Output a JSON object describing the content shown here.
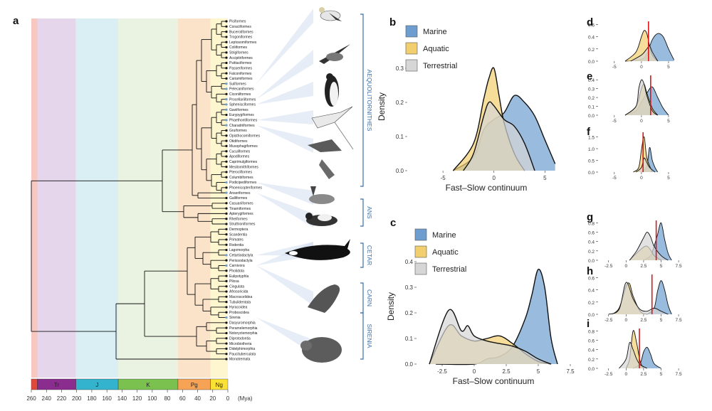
{
  "panel_letters": {
    "a": "a",
    "b": "b",
    "c": "c",
    "d": "d",
    "e": "e",
    "f": "f",
    "g": "g",
    "h": "h",
    "i": "i"
  },
  "colors": {
    "marine": "#6d9ecf",
    "aquatic": "#f2cf6e",
    "terrestrial": "#d6d6d6",
    "aves_bg": "#eaf0e0",
    "line": "#111111",
    "clade": "#3b6fa8",
    "vline": "#d7191c"
  },
  "tree": {
    "leaves": [
      "Piciformes",
      "Coraciiformes",
      "Bucerotiformes",
      "Trogoniformes",
      "Leptosomiformes",
      "Coliiformes",
      "Strigiformes",
      "Accipitriformes",
      "Psittaciformes",
      "Passeriformes",
      "Falconiformes",
      "Cariamiformes",
      "Suliformes",
      "Pelecaniformes",
      "Ciconiiformes",
      "Procellariiformes",
      "Sphenisciformes",
      "Gaviiformes",
      "Eurypygiformes",
      "Phaethontiformes",
      "Charadriiformes",
      "Gruiformes",
      "Opisthocomiformes",
      "Otidiformes",
      "Musophagiformes",
      "Cuculiformes",
      "Apodiformes",
      "Caprimulgiformes",
      "Mesitornithiformes",
      "Pterocliformes",
      "Columbiformes",
      "Podicipediformes",
      "Phoenicopteriformes",
      "Anseriformes",
      "Galliformes",
      "Casuariiformes",
      "Tinamiformes",
      "Apterygiformes",
      "Rheiformes",
      "Struthioniformes",
      "Dermoptera",
      "Scandentia",
      "Primates",
      "Rodentia",
      "Lagomorpha",
      "Cetartiodactyla",
      "Perissodactyla",
      "Carnivora",
      "Pholidota",
      "Eulipotyphla",
      "Pilosa",
      "Cingulata",
      "Afrosoricida",
      "Macroscelidea",
      "Tubulidentata",
      "Hyracoidea",
      "Proboscidea",
      "Sirenia",
      "Dasyuromorphia",
      "Peramelemorphia",
      "Notoryctemorphia",
      "Diprotodontia",
      "Microbiotheria",
      "Didelphimorphia",
      "Paucituberculata",
      "Monotremata"
    ],
    "aquatic_leaves": [
      "Suliformes",
      "Pelecaniformes",
      "Procellariiformes",
      "Sphenisciformes",
      "Gaviiformes",
      "Phaethontiformes",
      "Charadriiformes",
      "Podicipediformes",
      "Anseriformes",
      "Cetartiodactyla",
      "Carnivora",
      "Sirenia"
    ],
    "clades": [
      {
        "name": "AEQUOLITORNITHES"
      },
      {
        "name": "ANS"
      },
      {
        "name": "CETAR"
      },
      {
        "name": "CARN"
      },
      {
        "name": "SIRENIA"
      }
    ]
  },
  "timescale": {
    "periods": [
      {
        "name": "",
        "start": 260,
        "end": 252,
        "color": "#e2473a"
      },
      {
        "name": "Tr",
        "start": 252,
        "end": 201,
        "color": "#8b2c8f"
      },
      {
        "name": "J",
        "start": 201,
        "end": 145,
        "color": "#33b3cd"
      },
      {
        "name": "K",
        "start": 145,
        "end": 66,
        "color": "#7bc150"
      },
      {
        "name": "Pg",
        "start": 66,
        "end": 23,
        "color": "#f7a356"
      },
      {
        "name": "Ng",
        "start": 23,
        "end": 0,
        "color": "#fbe134"
      }
    ],
    "ticks": [
      260,
      240,
      220,
      200,
      180,
      160,
      140,
      120,
      100,
      80,
      60,
      40,
      20,
      0
    ],
    "unit": "(Mya)"
  },
  "chart_data": [
    {
      "id": "b",
      "type": "area",
      "title": "",
      "xlabel": "Fast–Slow continuum",
      "ylabel": "Density",
      "xlim": [
        -8.5,
        7
      ],
      "ylim": [
        0,
        0.375
      ],
      "xticks": [
        -5,
        0,
        5
      ],
      "yticks": [
        0.0,
        0.1,
        0.2,
        0.3
      ],
      "legend_position": "top-left",
      "series": [
        {
          "name": "Marine",
          "x": [
            -4,
            -2,
            -1,
            0,
            1,
            2,
            3,
            4,
            5,
            6
          ],
          "y": [
            0.0,
            0.04,
            0.12,
            0.15,
            0.17,
            0.22,
            0.2,
            0.16,
            0.09,
            0.02
          ]
        },
        {
          "name": "Aquatic",
          "x": [
            -4,
            -2,
            -1,
            -0.5,
            0,
            0.5,
            1,
            2,
            3
          ],
          "y": [
            0.0,
            0.08,
            0.21,
            0.27,
            0.3,
            0.22,
            0.14,
            0.05,
            0.0
          ]
        },
        {
          "name": "Terrestrial",
          "x": [
            -3,
            -2,
            -1,
            -0.5,
            0,
            1,
            2,
            3,
            4
          ],
          "y": [
            0.0,
            0.05,
            0.16,
            0.2,
            0.19,
            0.15,
            0.13,
            0.08,
            0.0
          ]
        }
      ]
    },
    {
      "id": "c",
      "type": "area",
      "title": "",
      "xlabel": "Fast–Slow continuum",
      "ylabel": "Density",
      "xlim": [
        -4.5,
        7.5
      ],
      "ylim": [
        0,
        0.45
      ],
      "xticks": [
        -2.5,
        0.0,
        2.5,
        5.0,
        7.5
      ],
      "yticks": [
        0.0,
        0.1,
        0.2,
        0.3,
        0.4
      ],
      "legend_position": "top-left",
      "series": [
        {
          "name": "Marine",
          "x": [
            -3,
            0,
            1,
            2,
            3,
            4,
            4.5,
            5,
            5.5,
            6,
            6.5
          ],
          "y": [
            0.0,
            0.0,
            0.02,
            0.03,
            0.07,
            0.18,
            0.27,
            0.37,
            0.3,
            0.1,
            0.0
          ]
        },
        {
          "name": "Aquatic",
          "x": [
            -3.5,
            -2,
            -1,
            0,
            1,
            2,
            3,
            4,
            5,
            6
          ],
          "y": [
            0.0,
            0.15,
            0.11,
            0.09,
            0.1,
            0.11,
            0.08,
            0.04,
            0.01,
            0.0
          ]
        },
        {
          "name": "Terrestrial",
          "x": [
            -3.5,
            -2,
            -1,
            -0.5,
            0,
            1,
            2,
            3,
            4,
            5,
            6
          ],
          "y": [
            0.0,
            0.21,
            0.13,
            0.15,
            0.11,
            0.09,
            0.08,
            0.07,
            0.05,
            0.02,
            0.0
          ]
        }
      ]
    },
    {
      "id": "d",
      "type": "area",
      "title": "",
      "xlabel": "",
      "ylabel": "",
      "xlim": [
        -8,
        7.5
      ],
      "ylim": [
        0,
        0.65
      ],
      "xticks": [
        -5,
        0,
        5
      ],
      "yticks": [
        0.0,
        0.2,
        0.4,
        0.6
      ],
      "vline": 1.3,
      "series": [
        {
          "name": "Marine",
          "x": [
            -3,
            0,
            1,
            2,
            3,
            4,
            5,
            6
          ],
          "y": [
            0.0,
            0.03,
            0.12,
            0.35,
            0.45,
            0.4,
            0.2,
            0.02
          ]
        },
        {
          "name": "Aquatic",
          "x": [
            -3,
            -1,
            0,
            0.5,
            1,
            1.5,
            2,
            3
          ],
          "y": [
            0.0,
            0.15,
            0.4,
            0.5,
            0.45,
            0.25,
            0.1,
            0.0
          ]
        },
        {
          "name": "Terrestrial",
          "x": [
            -2,
            0,
            1,
            1.5,
            2,
            3
          ],
          "y": [
            0.0,
            0.1,
            0.2,
            0.25,
            0.15,
            0.0
          ]
        }
      ]
    },
    {
      "id": "e",
      "type": "area",
      "title": "",
      "xlabel": "",
      "ylabel": "",
      "xlim": [
        -8,
        7.5
      ],
      "ylim": [
        0,
        0.45
      ],
      "xticks": [
        -5,
        0,
        5
      ],
      "yticks": [
        0.0,
        0.1,
        0.2,
        0.3,
        0.4
      ],
      "vline": 1.7,
      "series": [
        {
          "name": "Marine",
          "x": [
            -3,
            -1,
            0,
            1,
            2,
            3,
            4,
            5
          ],
          "y": [
            0.0,
            0.05,
            0.15,
            0.25,
            0.32,
            0.2,
            0.08,
            0.0
          ]
        },
        {
          "name": "Aquatic",
          "x": [
            -3,
            -1,
            0,
            0.5,
            1,
            2,
            3
          ],
          "y": [
            0.0,
            0.1,
            0.3,
            0.35,
            0.25,
            0.08,
            0.0
          ]
        },
        {
          "name": "Terrestrial",
          "x": [
            -3,
            -1,
            -0.5,
            0,
            0.5,
            1,
            2,
            3
          ],
          "y": [
            0.0,
            0.1,
            0.3,
            0.4,
            0.35,
            0.22,
            0.05,
            0.0
          ]
        }
      ]
    },
    {
      "id": "f",
      "type": "area",
      "title": "",
      "xlabel": "",
      "ylabel": "",
      "xlim": [
        -8,
        7.5
      ],
      "ylim": [
        0,
        1.7
      ],
      "xticks": [
        -5,
        0,
        5
      ],
      "yticks": [
        0.0,
        0.5,
        1.0,
        1.5
      ],
      "vline": 0.3,
      "series": [
        {
          "name": "Marine",
          "x": [
            0,
            1,
            1.5,
            2,
            2.5,
            3
          ],
          "y": [
            0.0,
            0.25,
            1.05,
            0.5,
            0.2,
            0.0
          ]
        },
        {
          "name": "Aquatic",
          "x": [
            -1.5,
            -0.5,
            0,
            0.5,
            1,
            2
          ],
          "y": [
            0.0,
            0.2,
            0.95,
            1.5,
            0.6,
            0.0
          ]
        },
        {
          "name": "Terrestrial",
          "x": [
            -1,
            0,
            0.5,
            1,
            1.5,
            2.5
          ],
          "y": [
            0.0,
            0.2,
            0.6,
            0.4,
            0.2,
            0.0
          ]
        }
      ]
    },
    {
      "id": "g",
      "type": "area",
      "title": "",
      "xlabel": "",
      "ylabel": "",
      "xlim": [
        -4,
        8
      ],
      "ylim": [
        0,
        0.85
      ],
      "xticks": [
        -2.5,
        0.0,
        2.5,
        5.0,
        7.5
      ],
      "yticks": [
        0.0,
        0.2,
        0.4,
        0.6,
        0.8
      ],
      "vline": 4.3,
      "series": [
        {
          "name": "Marine",
          "x": [
            2.5,
            3.5,
            4,
            4.5,
            5,
            5.5,
            6,
            6.5
          ],
          "y": [
            0.0,
            0.1,
            0.3,
            0.55,
            0.8,
            0.45,
            0.15,
            0.0
          ]
        },
        {
          "name": "Aquatic",
          "x": [
            0.5,
            1.5,
            2.5,
            3,
            3.5,
            4,
            5
          ],
          "y": [
            0.0,
            0.15,
            0.28,
            0.3,
            0.22,
            0.1,
            0.0
          ]
        },
        {
          "name": "Terrestrial",
          "x": [
            0.5,
            1.5,
            2.5,
            3,
            3.5,
            4,
            5,
            6
          ],
          "y": [
            0.0,
            0.2,
            0.48,
            0.6,
            0.5,
            0.3,
            0.1,
            0.0
          ]
        }
      ]
    },
    {
      "id": "h",
      "type": "area",
      "title": "",
      "xlabel": "",
      "ylabel": "",
      "xlim": [
        -4,
        8
      ],
      "ylim": [
        0,
        0.65
      ],
      "xticks": [
        -2.5,
        0.0,
        2.5,
        5.0,
        7.5
      ],
      "yticks": [
        0.0,
        0.2,
        0.4,
        0.6
      ],
      "vline": 3.7,
      "series": [
        {
          "name": "Marine",
          "x": [
            3,
            4,
            4.5,
            5,
            5.5,
            6,
            6.5
          ],
          "y": [
            0.0,
            0.1,
            0.38,
            0.55,
            0.4,
            0.15,
            0.0
          ]
        },
        {
          "name": "Aquatic",
          "x": [
            -2,
            -1,
            0,
            0.5,
            1,
            2,
            3
          ],
          "y": [
            0.0,
            0.1,
            0.45,
            0.5,
            0.3,
            0.05,
            0.0
          ]
        },
        {
          "name": "Terrestrial",
          "x": [
            -2.5,
            -1,
            0,
            1,
            2,
            3,
            4,
            5,
            6
          ],
          "y": [
            0.0,
            0.08,
            0.52,
            0.25,
            0.08,
            0.05,
            0.1,
            0.05,
            0.0
          ]
        }
      ]
    },
    {
      "id": "i",
      "type": "area",
      "title": "",
      "xlabel": "",
      "ylabel": "",
      "xlim": [
        -4,
        8
      ],
      "ylim": [
        0,
        0.85
      ],
      "xticks": [
        -2.5,
        0.0,
        2.5,
        5.0,
        7.5
      ],
      "yticks": [
        0.0,
        0.2,
        0.4,
        0.6,
        0.8
      ],
      "vline": 1.9,
      "series": [
        {
          "name": "Marine",
          "x": [
            1,
            2,
            2.5,
            3,
            3.5,
            4,
            5
          ],
          "y": [
            0.0,
            0.1,
            0.35,
            0.45,
            0.3,
            0.1,
            0.0
          ]
        },
        {
          "name": "Aquatic",
          "x": [
            0,
            0.5,
            1,
            1.5,
            2,
            2.5
          ],
          "y": [
            0.0,
            0.2,
            0.8,
            0.55,
            0.15,
            0.0
          ]
        },
        {
          "name": "Terrestrial",
          "x": [
            -1,
            0,
            0.5,
            1,
            1.5,
            2,
            3
          ],
          "y": [
            0.0,
            0.2,
            0.55,
            0.4,
            0.2,
            0.08,
            0.0
          ]
        }
      ]
    }
  ]
}
